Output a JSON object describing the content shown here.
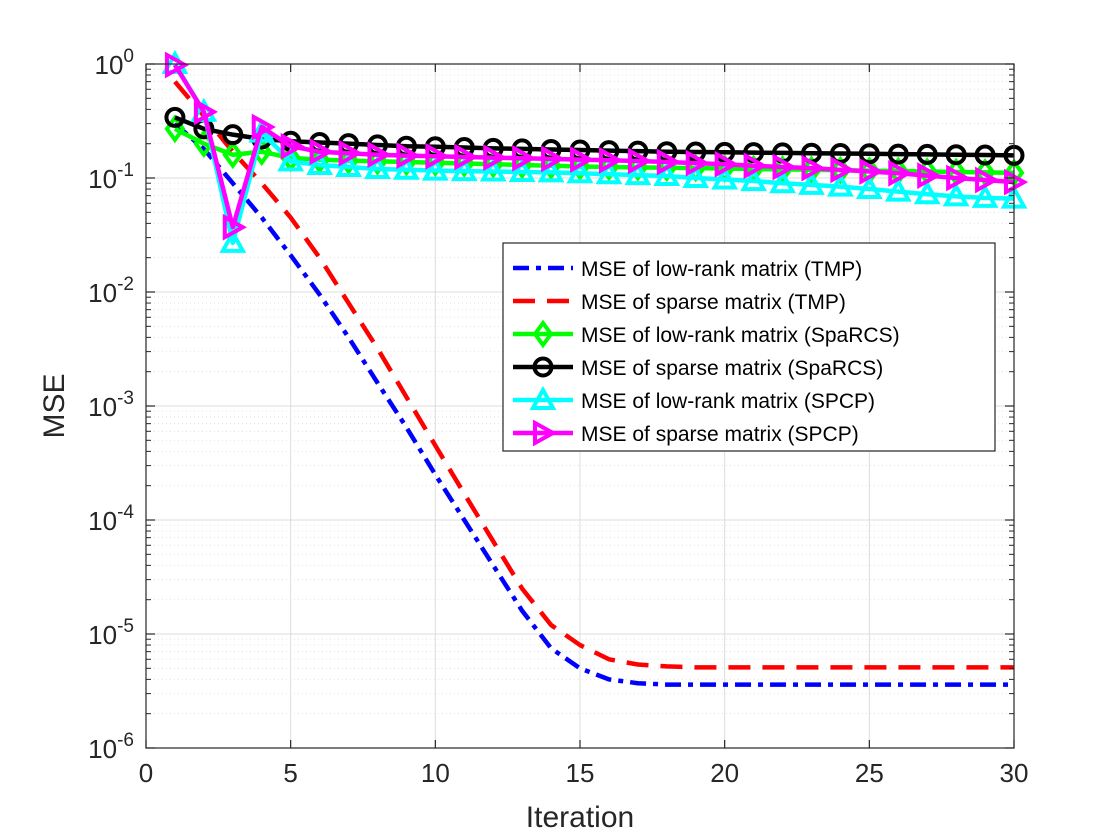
{
  "chart_data": {
    "type": "line",
    "xlabel": "Iteration",
    "ylabel": "MSE",
    "xlim": [
      0,
      30
    ],
    "ylim": [
      1e-06,
      1
    ],
    "yscale": "log",
    "grid": true,
    "minor_grid": true,
    "legend_position": "center-right",
    "x_ticks": [
      "0",
      "5",
      "10",
      "15",
      "20",
      "25",
      "30"
    ],
    "y_ticks": [
      {
        "base": "10",
        "exp": "-6"
      },
      {
        "base": "10",
        "exp": "-5"
      },
      {
        "base": "10",
        "exp": "-4"
      },
      {
        "base": "10",
        "exp": "-3"
      },
      {
        "base": "10",
        "exp": "-2"
      },
      {
        "base": "10",
        "exp": "-1"
      },
      {
        "base": "10",
        "exp": "0"
      }
    ],
    "x": [
      1,
      2,
      3,
      4,
      5,
      6,
      7,
      8,
      9,
      10,
      11,
      12,
      13,
      14,
      15,
      16,
      17,
      18,
      19,
      20,
      21,
      22,
      23,
      24,
      25,
      26,
      27,
      28,
      29,
      30
    ],
    "series": [
      {
        "name": "MSE of low-rank matrix (TMP)",
        "color": "#0000ff",
        "dash": "dashdot",
        "marker": "none",
        "values": [
          0.3,
          0.18,
          0.09,
          0.045,
          0.021,
          0.0095,
          0.004,
          0.0016,
          0.00065,
          0.00025,
          0.0001,
          4e-05,
          1.6e-05,
          7.5e-06,
          5e-06,
          4e-06,
          3.7e-06,
          3.6e-06,
          3.6e-06,
          3.6e-06,
          3.6e-06,
          3.6e-06,
          3.6e-06,
          3.6e-06,
          3.6e-06,
          3.6e-06,
          3.6e-06,
          3.6e-06,
          3.6e-06,
          3.6e-06
        ]
      },
      {
        "name": "MSE of sparse matrix (TMP)",
        "color": "#ff0000",
        "dash": "dashed",
        "marker": "none",
        "values": [
          0.7,
          0.35,
          0.17,
          0.09,
          0.045,
          0.02,
          0.008,
          0.0032,
          0.0012,
          0.00045,
          0.00017,
          6.5e-05,
          2.5e-05,
          1.2e-05,
          8e-06,
          6e-06,
          5.4e-06,
          5.2e-06,
          5.1e-06,
          5.1e-06,
          5.1e-06,
          5.1e-06,
          5.1e-06,
          5.1e-06,
          5.1e-06,
          5.1e-06,
          5.1e-06,
          5.1e-06,
          5.1e-06,
          5.1e-06
        ]
      },
      {
        "name": "MSE of low-rank matrix (SpaRCS)",
        "color": "#00ff00",
        "dash": "solid",
        "marker": "diamond",
        "values": [
          0.27,
          0.2,
          0.16,
          0.17,
          0.15,
          0.145,
          0.142,
          0.14,
          0.138,
          0.136,
          0.134,
          0.132,
          0.13,
          0.128,
          0.126,
          0.125,
          0.124,
          0.123,
          0.122,
          0.121,
          0.12,
          0.119,
          0.118,
          0.117,
          0.116,
          0.115,
          0.114,
          0.113,
          0.112,
          0.111
        ]
      },
      {
        "name": "MSE of sparse matrix (SpaRCS)",
        "color": "#000000",
        "dash": "solid",
        "marker": "circle",
        "values": [
          0.34,
          0.27,
          0.24,
          0.22,
          0.21,
          0.205,
          0.2,
          0.195,
          0.19,
          0.188,
          0.185,
          0.182,
          0.18,
          0.178,
          0.176,
          0.174,
          0.172,
          0.17,
          0.169,
          0.168,
          0.167,
          0.166,
          0.165,
          0.164,
          0.163,
          0.162,
          0.161,
          0.16,
          0.159,
          0.158
        ]
      },
      {
        "name": "MSE of low-rank matrix (SPCP)",
        "color": "#00ffff",
        "dash": "solid",
        "marker": "triangle-up",
        "values": [
          1.0,
          0.38,
          0.027,
          0.25,
          0.14,
          0.13,
          0.125,
          0.12,
          0.118,
          0.116,
          0.115,
          0.114,
          0.113,
          0.112,
          0.11,
          0.108,
          0.106,
          0.104,
          0.1,
          0.097,
          0.094,
          0.09,
          0.087,
          0.084,
          0.08,
          0.076,
          0.072,
          0.069,
          0.067,
          0.066
        ]
      },
      {
        "name": "MSE of sparse matrix (SPCP)",
        "color": "#ff00ff",
        "dash": "solid",
        "marker": "triangle-right",
        "values": [
          0.98,
          0.38,
          0.037,
          0.28,
          0.19,
          0.17,
          0.165,
          0.16,
          0.157,
          0.155,
          0.153,
          0.151,
          0.149,
          0.147,
          0.145,
          0.143,
          0.141,
          0.138,
          0.135,
          0.132,
          0.128,
          0.125,
          0.122,
          0.118,
          0.114,
          0.11,
          0.105,
          0.1,
          0.096,
          0.092
        ]
      }
    ]
  }
}
